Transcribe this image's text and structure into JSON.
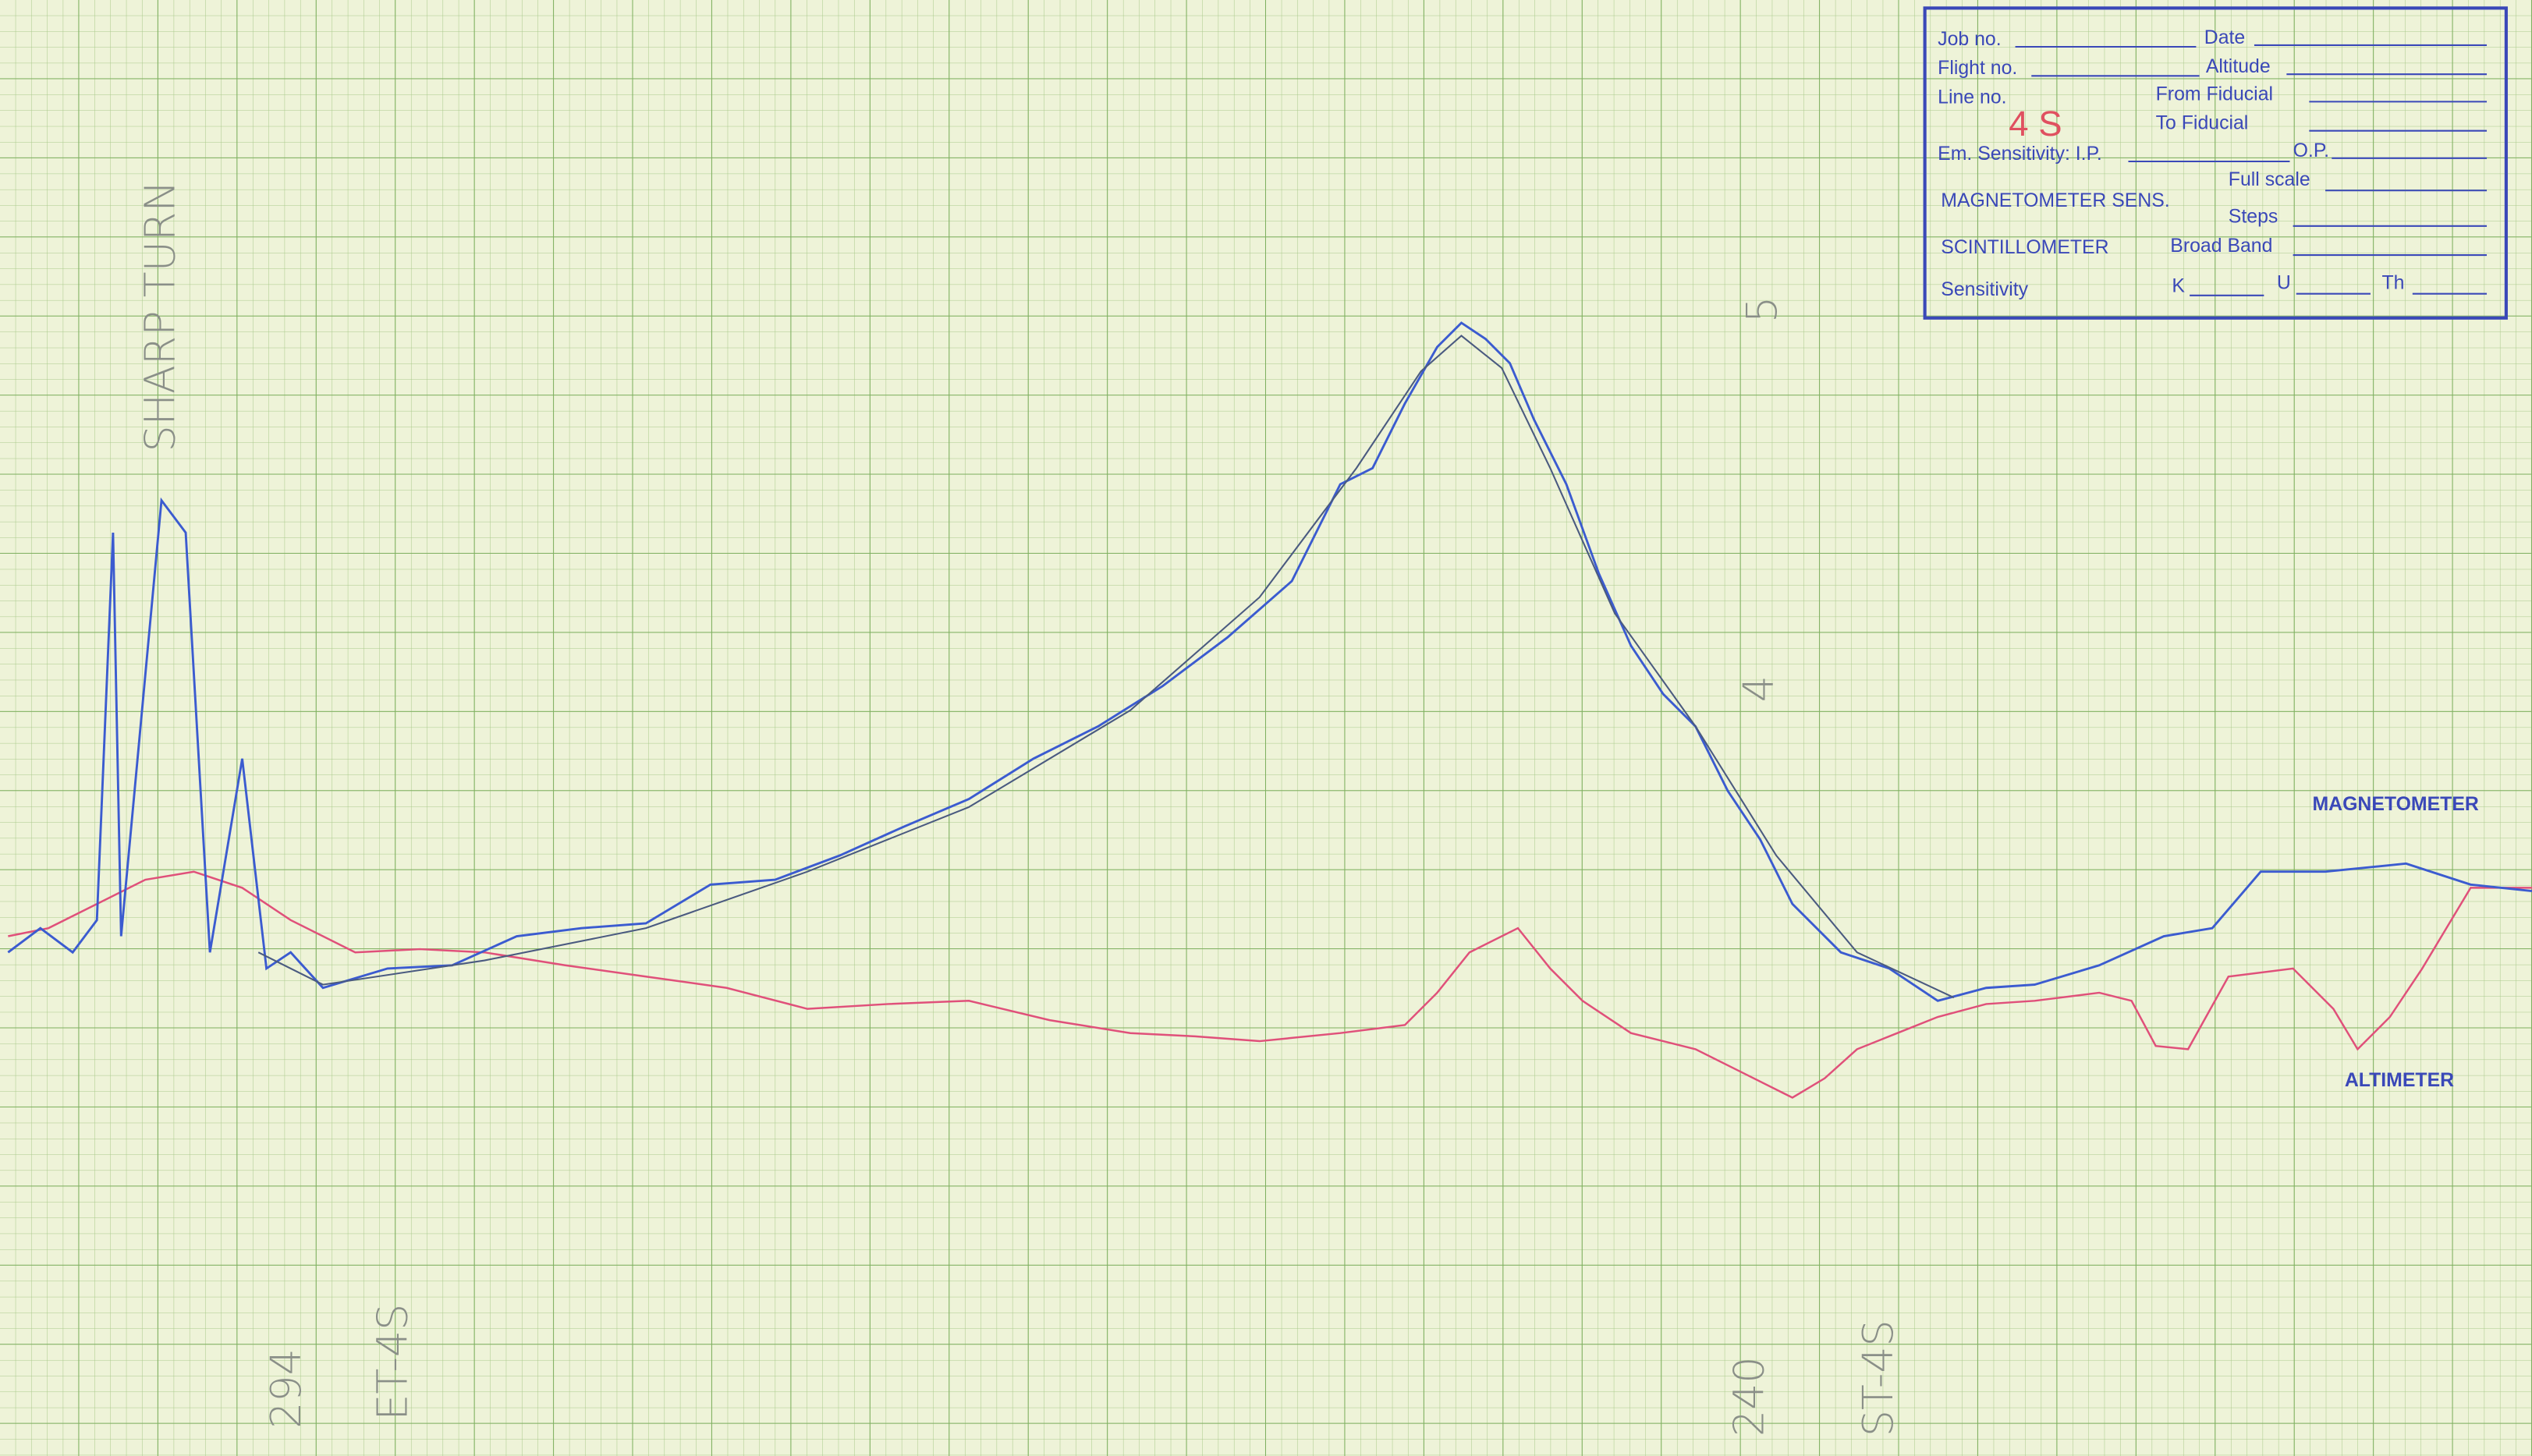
{
  "stamp": {
    "job_no": "Job no.",
    "date": "Date",
    "flight_no": "Flight no.",
    "altitude": "Altitude",
    "line_no": "Line no.",
    "line_no_value": "4 S",
    "from_fiducial": "From Fiducial",
    "to_fiducial": "To Fiducial",
    "em_sensitivity": "Em. Sensitivity: I.P.",
    "op": "O.P.",
    "magnetometer_sens": "MAGNETOMETER SENS.",
    "full_scale": "Full scale",
    "steps": "Steps",
    "scintillometer": "SCINTILLOMETER",
    "broad_band": "Broad Band",
    "sensitivity": "Sensitivity",
    "k": "K",
    "u": "U",
    "th": "Th"
  },
  "trace_labels": {
    "magnetometer": "MAGNETOMETER",
    "altimeter": "ALTIMETER"
  },
  "annotations": {
    "sharp_turn": "SHARP TURN",
    "fiducial_left": "294",
    "et": "ET-4S",
    "fiducial_right": "240",
    "st": "ST-4S",
    "mark_5": "5",
    "mark_4": "4"
  }
}
